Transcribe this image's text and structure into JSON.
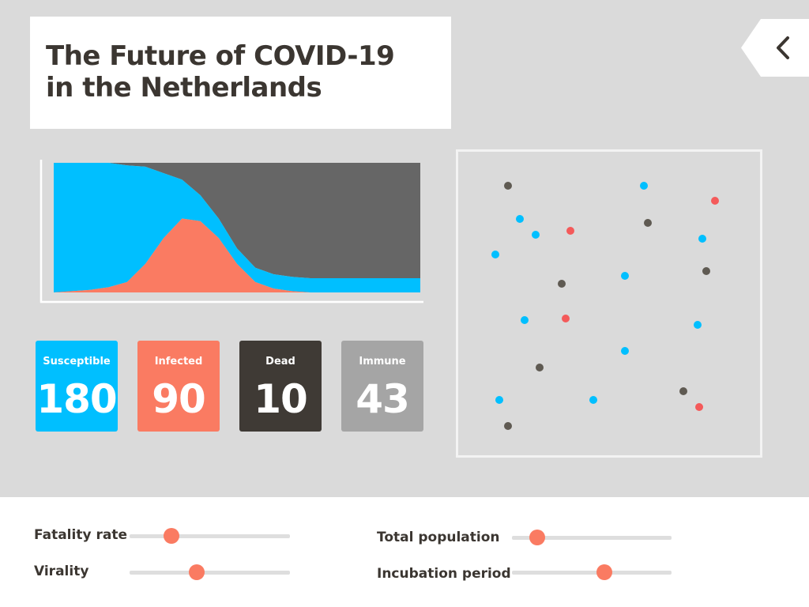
{
  "header": {
    "title_line1": "The Future of COVID-19",
    "title_line2": "in the Netherlands",
    "back_icon": "chevron-left-icon"
  },
  "colors": {
    "susceptible": "#00bfff",
    "infected": "#fa7b62",
    "dead": "#3f3a35",
    "immune": "#a5a5a5",
    "removed_area": "#666666",
    "dead_dot": "#5f5a52",
    "infected_dot": "#f45a5a"
  },
  "stats": [
    {
      "label": "Susceptible",
      "value": "180"
    },
    {
      "label": "Infected",
      "value": "90"
    },
    {
      "label": "Dead",
      "value": "10"
    },
    {
      "label": "Immune",
      "value": "43"
    }
  ],
  "chart_data": {
    "type": "area",
    "x": [
      0,
      1,
      2,
      3,
      4,
      5,
      6,
      7,
      8,
      9,
      10,
      11,
      12,
      13,
      14,
      15,
      16,
      17,
      18,
      19,
      20
    ],
    "series": [
      {
        "name": "",
        "values": [
          0,
          0.01,
          0.02,
          0.04,
          0.08,
          0.22,
          0.42,
          0.57,
          0.55,
          0.42,
          0.22,
          0.08,
          0.03,
          0.01,
          0,
          0,
          0,
          0,
          0,
          0,
          0
        ]
      },
      {
        "name": "",
        "values": [
          1,
          0.99,
          0.98,
          0.96,
          0.9,
          0.75,
          0.5,
          0.3,
          0.2,
          0.15,
          0.12,
          0.11,
          0.11,
          0.11,
          0.11,
          0.11,
          0.11,
          0.11,
          0.11,
          0.11,
          0.11
        ]
      },
      {
        "name": "",
        "values": [
          0,
          0,
          0,
          0,
          0.02,
          0.03,
          0.08,
          0.13,
          0.25,
          0.43,
          0.66,
          0.81,
          0.86,
          0.88,
          0.89,
          0.89,
          0.89,
          0.89,
          0.89,
          0.89,
          0.89
        ]
      }
    ],
    "ylim": [
      0,
      1
    ]
  },
  "population_dots": [
    {
      "state": "dead"
    },
    {
      "state": "susceptible"
    },
    {
      "state": "infected"
    },
    {
      "state": "susceptible"
    },
    {
      "state": "dead"
    },
    {
      "state": "susceptible"
    },
    {
      "state": "infected"
    },
    {
      "state": "susceptible"
    },
    {
      "state": "susceptible"
    },
    {
      "state": "dead"
    },
    {
      "state": "susceptible"
    },
    {
      "state": "dead"
    },
    {
      "state": "susceptible"
    },
    {
      "state": "infected"
    },
    {
      "state": "susceptible"
    },
    {
      "state": "susceptible"
    },
    {
      "state": "dead"
    },
    {
      "state": "susceptible"
    },
    {
      "state": "susceptible"
    },
    {
      "state": "dead"
    },
    {
      "state": "infected"
    },
    {
      "state": "dead"
    }
  ],
  "controls": [
    {
      "label": "Fatality rate",
      "value": 0.26
    },
    {
      "label": "Virality",
      "value": 0.42
    },
    {
      "label": "Total population",
      "value": 0.16
    },
    {
      "label": "Incubation period",
      "value": 0.58
    }
  ]
}
